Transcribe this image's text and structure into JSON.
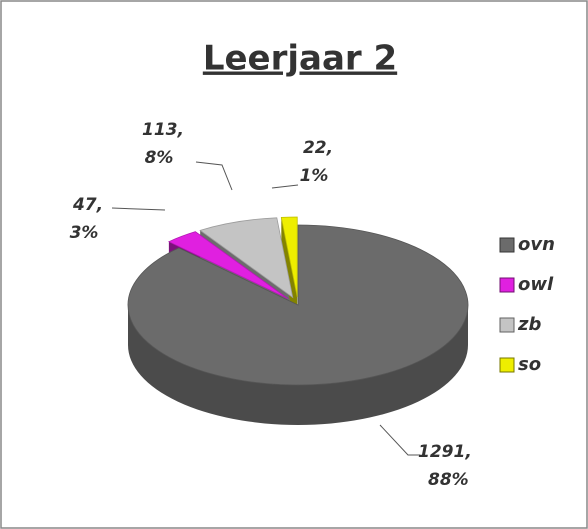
{
  "chart_data": {
    "type": "pie3d",
    "title": "Leerjaar 2",
    "categories": [
      "ovn",
      "owl",
      "zb",
      "so"
    ],
    "values": [
      1291,
      47,
      113,
      22
    ],
    "value_labels": [
      "1291,",
      "47,",
      "113,",
      "22,"
    ],
    "percent_labels": [
      "88%",
      "3%",
      "8%",
      "1%"
    ],
    "colors": [
      "#6b6b6b",
      "#e020e0",
      "#c4c4c4",
      "#eeee00"
    ],
    "legend": "right"
  }
}
